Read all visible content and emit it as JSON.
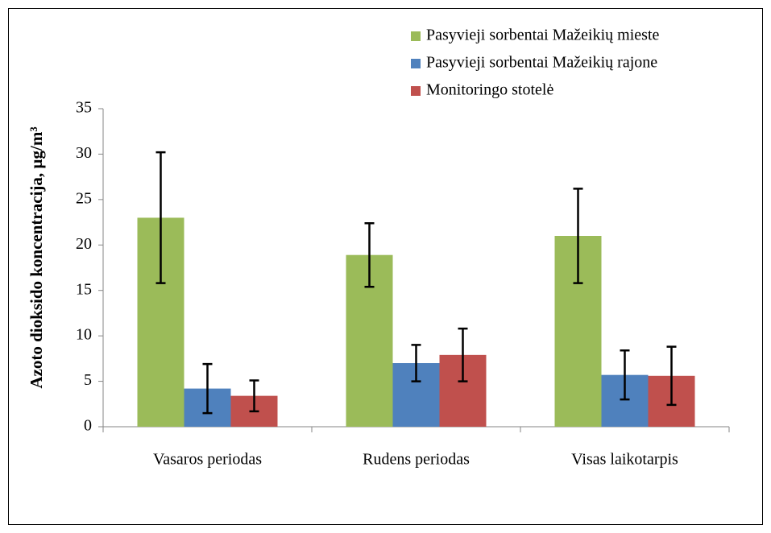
{
  "chart_data": {
    "type": "bar",
    "y_label": "Azoto dioksido koncentracija, µg/m³",
    "categories": [
      "Vasaros periodas",
      "Rudens periodas",
      "Visas laikotarpis"
    ],
    "series": [
      {
        "name": "Pasyvieji sorbentai Mažeikių mieste",
        "color": "#9bbb59",
        "values": [
          23,
          18.9,
          21
        ],
        "errors": [
          7.2,
          3.5,
          5.2
        ]
      },
      {
        "name": "Pasyvieji sorbentai Mažeikių rajone",
        "color": "#4f81bd",
        "values": [
          4.2,
          7.0,
          5.7
        ],
        "errors": [
          2.7,
          2.0,
          2.7
        ]
      },
      {
        "name": "Monitoringo stotelė",
        "color": "#c0504d",
        "values": [
          3.4,
          7.9,
          5.6
        ],
        "errors": [
          1.7,
          2.9,
          3.2
        ]
      }
    ],
    "ylim": [
      0,
      35
    ],
    "yticks": [
      0,
      5,
      10,
      15,
      20,
      25,
      30,
      35
    ],
    "grid": false,
    "legend": "top-right"
  }
}
